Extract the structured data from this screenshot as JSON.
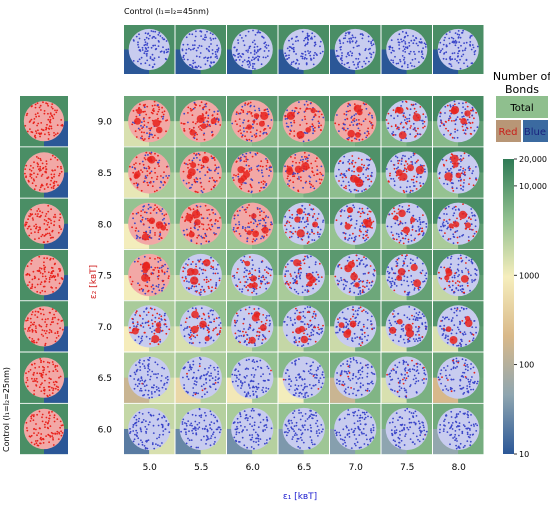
{
  "top_control_title": "Control (l₁=l₂=45nm)",
  "left_control_title": "Control (l₁=l₂=25nm)",
  "x_axis_label": "ε₁  [kʙT]",
  "y_axis_label": "ε₂  [kʙT]",
  "legend": {
    "title_line1": "Number of",
    "title_line2": "Bonds",
    "total_label": "Total",
    "red_label": "Red",
    "blue_label": "Blue",
    "colorbar_ticks": [
      "20,000",
      "10,000",
      "1000",
      "100",
      "10"
    ],
    "colorbar_scale": "log",
    "colorbar_range": [
      10,
      20000
    ]
  },
  "colors": {
    "particle_red": "#e8221c",
    "particle_blue": "#3a45c8",
    "cmap": [
      "#2b5797",
      "#8fa6b0",
      "#d9b98a",
      "#f6eebd",
      "#8fbf8e",
      "#2f7a55"
    ]
  },
  "chart_data": {
    "type": "heatmap",
    "x_label": "ε₁ [kBT]",
    "y_label": "ε₂ [kBT]",
    "x": [
      "5.0",
      "5.5",
      "6.0",
      "6.5",
      "7.0",
      "7.5",
      "8.0"
    ],
    "y": [
      "9.0",
      "8.5",
      "8.0",
      "7.5",
      "7.0",
      "6.5",
      "6.0"
    ],
    "cells": [
      [
        {
          "total": 8000,
          "red": 1500,
          "blue": 3000,
          "red_frac": 0.75
        },
        {
          "total": 9000,
          "red": 3000,
          "blue": 4000,
          "red_frac": 0.7
        },
        {
          "total": 10000,
          "red": 4000,
          "blue": 5000,
          "red_frac": 0.6
        },
        {
          "total": 11000,
          "red": 5000,
          "blue": 6000,
          "red_frac": 0.55
        },
        {
          "total": 12000,
          "red": 5500,
          "blue": 7000,
          "red_frac": 0.5
        },
        {
          "total": 13000,
          "red": 5500,
          "blue": 8000,
          "red_frac": 0.45
        },
        {
          "total": 14000,
          "red": 5000,
          "blue": 9000,
          "red_frac": 0.4
        }
      ],
      [
        {
          "total": 5000,
          "red": 1200,
          "blue": 3000,
          "red_frac": 0.7
        },
        {
          "total": 7000,
          "red": 3000,
          "blue": 4000,
          "red_frac": 0.6
        },
        {
          "total": 9000,
          "red": 4000,
          "blue": 5000,
          "red_frac": 0.55
        },
        {
          "total": 11000,
          "red": 4500,
          "blue": 6500,
          "red_frac": 0.5
        },
        {
          "total": 12000,
          "red": 4500,
          "blue": 7500,
          "red_frac": 0.45
        },
        {
          "total": 13000,
          "red": 4500,
          "blue": 8500,
          "red_frac": 0.4
        },
        {
          "total": 14000,
          "red": 4000,
          "blue": 9500,
          "red_frac": 0.35
        }
      ],
      [
        {
          "total": 4000,
          "red": 1000,
          "blue": 2500,
          "red_frac": 0.6
        },
        {
          "total": 6000,
          "red": 2500,
          "blue": 3500,
          "red_frac": 0.55
        },
        {
          "total": 8000,
          "red": 3500,
          "blue": 5000,
          "red_frac": 0.5
        },
        {
          "total": 10000,
          "red": 4000,
          "blue": 6000,
          "red_frac": 0.45
        },
        {
          "total": 11000,
          "red": 4000,
          "blue": 7000,
          "red_frac": 0.4
        },
        {
          "total": 12000,
          "red": 3500,
          "blue": 8500,
          "red_frac": 0.35
        },
        {
          "total": 13000,
          "red": 3000,
          "blue": 9500,
          "red_frac": 0.3
        }
      ],
      [
        {
          "total": 3500,
          "red": 1000,
          "blue": 2500,
          "red_frac": 0.5
        },
        {
          "total": 5000,
          "red": 2000,
          "blue": 3000,
          "red_frac": 0.45
        },
        {
          "total": 7000,
          "red": 3000,
          "blue": 4500,
          "red_frac": 0.4
        },
        {
          "total": 9000,
          "red": 3000,
          "blue": 6000,
          "red_frac": 0.35
        },
        {
          "total": 10000,
          "red": 2500,
          "blue": 7500,
          "red_frac": 0.3
        },
        {
          "total": 11000,
          "red": 2500,
          "blue": 8500,
          "red_frac": 0.25
        },
        {
          "total": 12000,
          "red": 2000,
          "blue": 9500,
          "red_frac": 0.22
        }
      ],
      [
        {
          "total": 3000,
          "red": 900,
          "blue": 2000,
          "red_frac": 0.45
        },
        {
          "total": 4000,
          "red": 1500,
          "blue": 2500,
          "red_frac": 0.38
        },
        {
          "total": 6000,
          "red": 2000,
          "blue": 4000,
          "red_frac": 0.3
        },
        {
          "total": 7500,
          "red": 2000,
          "blue": 5500,
          "red_frac": 0.25
        },
        {
          "total": 9000,
          "red": 1800,
          "blue": 7000,
          "red_frac": 0.2
        },
        {
          "total": 10000,
          "red": 1500,
          "blue": 8500,
          "red_frac": 0.17
        },
        {
          "total": 11000,
          "red": 1500,
          "blue": 9500,
          "red_frac": 0.15
        }
      ],
      [
        {
          "total": 2500,
          "red": 150,
          "blue": 1500,
          "red_frac": 0.03
        },
        {
          "total": 3000,
          "red": 500,
          "blue": 2500,
          "red_frac": 0.04
        },
        {
          "total": 4000,
          "red": 800,
          "blue": 3000,
          "red_frac": 0.05
        },
        {
          "total": 5000,
          "red": 1000,
          "blue": 4000,
          "red_frac": 0.06
        },
        {
          "total": 6000,
          "red": 150,
          "blue": 5500,
          "red_frac": 0.07
        },
        {
          "total": 7000,
          "red": 1500,
          "blue": 6000,
          "red_frac": 0.09
        },
        {
          "total": 8000,
          "red": 200,
          "blue": 7500,
          "red_frac": 0.1
        }
      ],
      [
        {
          "total": 2000,
          "red": 20,
          "blue": 1500,
          "red_frac": 0.0
        },
        {
          "total": 2500,
          "red": 25,
          "blue": 2000,
          "red_frac": 0.0
        },
        {
          "total": 3000,
          "red": 30,
          "blue": 2500,
          "red_frac": 0.0
        },
        {
          "total": 4000,
          "red": 35,
          "blue": 3500,
          "red_frac": 0.01
        },
        {
          "total": 5000,
          "red": 40,
          "blue": 4500,
          "red_frac": 0.01
        },
        {
          "total": 6000,
          "red": 45,
          "blue": 5500,
          "red_frac": 0.01
        },
        {
          "total": 7000,
          "red": 50,
          "blue": 6500,
          "red_frac": 0.01
        }
      ]
    ],
    "top_control": [
      {
        "total": 13000,
        "red": 0,
        "blue": 13000,
        "red_frac": 0.0
      },
      {
        "total": 13000,
        "red": 0,
        "blue": 13000,
        "red_frac": 0.0
      },
      {
        "total": 13000,
        "red": 0,
        "blue": 13000,
        "red_frac": 0.0
      },
      {
        "total": 13000,
        "red": 0,
        "blue": 13000,
        "red_frac": 0.0
      },
      {
        "total": 13000,
        "red": 0,
        "blue": 13000,
        "red_frac": 0.0
      },
      {
        "total": 13000,
        "red": 0,
        "blue": 13000,
        "red_frac": 0.0
      },
      {
        "total": 13000,
        "red": 0,
        "blue": 13000,
        "red_frac": 0.0
      }
    ],
    "left_control": [
      {
        "total": 13000,
        "red": 13000,
        "blue": 0,
        "red_frac": 1.0
      },
      {
        "total": 13000,
        "red": 13000,
        "blue": 0,
        "red_frac": 1.0
      },
      {
        "total": 13000,
        "red": 13000,
        "blue": 0,
        "red_frac": 1.0
      },
      {
        "total": 13000,
        "red": 13000,
        "blue": 0,
        "red_frac": 1.0
      },
      {
        "total": 13000,
        "red": 13000,
        "blue": 0,
        "red_frac": 1.0
      },
      {
        "total": 13000,
        "red": 13000,
        "blue": 0,
        "red_frac": 1.0
      },
      {
        "total": 13000,
        "red": 13000,
        "blue": 0,
        "red_frac": 1.0
      }
    ]
  }
}
